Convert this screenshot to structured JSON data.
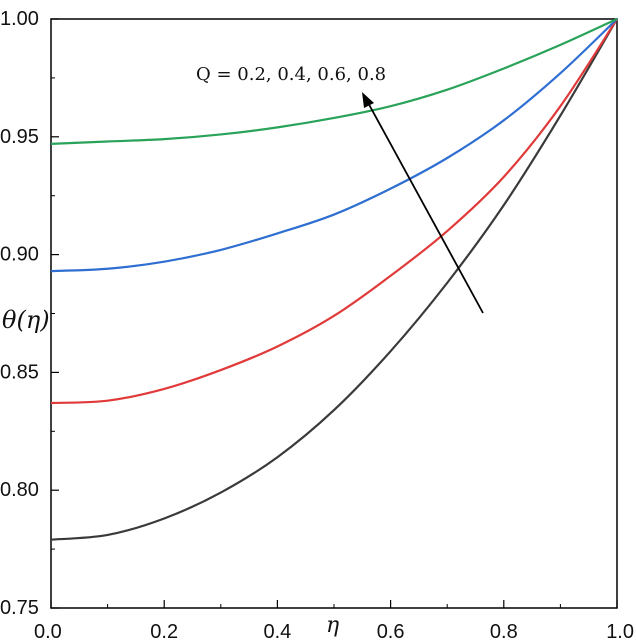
{
  "chart_data": {
    "type": "line",
    "xlabel": "η",
    "ylabel": "θ(η)",
    "xlim": [
      0.0,
      1.0
    ],
    "ylim": [
      0.75,
      1.0
    ],
    "x_ticks": [
      "0.0",
      "0.2",
      "0.4",
      "0.6",
      "0.8",
      "1.0"
    ],
    "y_ticks": [
      "0.75",
      "0.80",
      "0.85",
      "0.90",
      "0.95",
      "1.00"
    ],
    "grid": false,
    "legend": "none",
    "annotation": "Q = 0.2, 0.4, 0.6, 0.8",
    "x": [
      0.0,
      0.1,
      0.2,
      0.3,
      0.4,
      0.5,
      0.6,
      0.7,
      0.8,
      0.9,
      1.0
    ],
    "series": [
      {
        "color": "#3a3a3a",
        "values": [
          0.779,
          0.781,
          0.788,
          0.799,
          0.814,
          0.834,
          0.859,
          0.888,
          0.921,
          0.959,
          1.0
        ]
      },
      {
        "color": "#e03a3a",
        "values": [
          0.837,
          0.838,
          0.843,
          0.851,
          0.861,
          0.874,
          0.891,
          0.91,
          0.933,
          0.963,
          1.0
        ]
      },
      {
        "color": "#2f6fd1",
        "values": [
          0.893,
          0.894,
          0.897,
          0.902,
          0.909,
          0.917,
          0.928,
          0.941,
          0.957,
          0.977,
          1.0
        ]
      },
      {
        "color": "#2aa35a",
        "values": [
          0.947,
          0.948,
          0.949,
          0.951,
          0.954,
          0.958,
          0.963,
          0.97,
          0.979,
          0.989,
          1.0
        ]
      }
    ]
  }
}
